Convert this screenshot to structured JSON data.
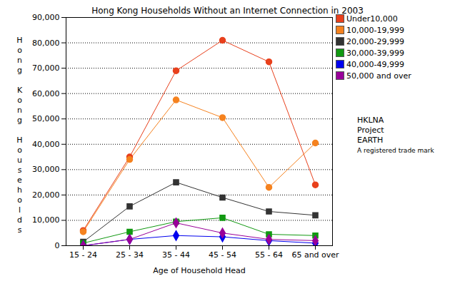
{
  "chart_data": {
    "type": "line",
    "title": "Hong Kong Households Without an Internet Connection in 2003",
    "x_label": "Age of Household Head",
    "y_label": "Hong Kong Households",
    "categories": [
      "15 - 24",
      "25 - 34",
      "35 - 44",
      "45 - 54",
      "55 - 64",
      "65 and over"
    ],
    "series": [
      {
        "name": "Under10,000",
        "color": "#e8401c",
        "marker": "circle",
        "values": [
          6000,
          35000,
          69000,
          81000,
          72500,
          24000
        ]
      },
      {
        "name": "10,000-19,999",
        "color": "#f5821f",
        "marker": "circle",
        "values": [
          5500,
          34000,
          57500,
          50500,
          23000,
          40500
        ]
      },
      {
        "name": "20,000-29,999",
        "color": "#333333",
        "marker": "square",
        "values": [
          1500,
          15500,
          25000,
          19000,
          13500,
          12000
        ]
      },
      {
        "name": "30,000-39,999",
        "color": "#119911",
        "marker": "square",
        "values": [
          1000,
          5500,
          9500,
          11000,
          4500,
          4000
        ]
      },
      {
        "name": "40,000-49,999",
        "color": "#0000ee",
        "marker": "diamond",
        "values": [
          0,
          2500,
          4000,
          3500,
          2000,
          1000
        ]
      },
      {
        "name": "50,000 and over",
        "color": "#990099",
        "marker": "diamond",
        "values": [
          0,
          2500,
          9000,
          5000,
          2500,
          2000
        ]
      }
    ],
    "ylim": [
      0,
      90000
    ],
    "yticks": [
      0,
      {
        "value": 10000,
        "label": "10,000"
      },
      {
        "value": 20000,
        "label": "20,000"
      },
      {
        "value": 30000,
        "label": "30,000"
      },
      {
        "value": 40000,
        "label": "40,000"
      },
      {
        "value": 50000,
        "label": "50,000"
      },
      {
        "value": 60000,
        "label": "60,000"
      },
      {
        "value": 70000,
        "label": "70,000"
      },
      {
        "value": 80000,
        "label": "80,000"
      },
      {
        "value": 90000,
        "label": "90,000"
      }
    ],
    "grid": true,
    "legend": "right",
    "annotations": [
      "HKLNA",
      "Project",
      "EARTH",
      "A registered trade mark"
    ]
  }
}
